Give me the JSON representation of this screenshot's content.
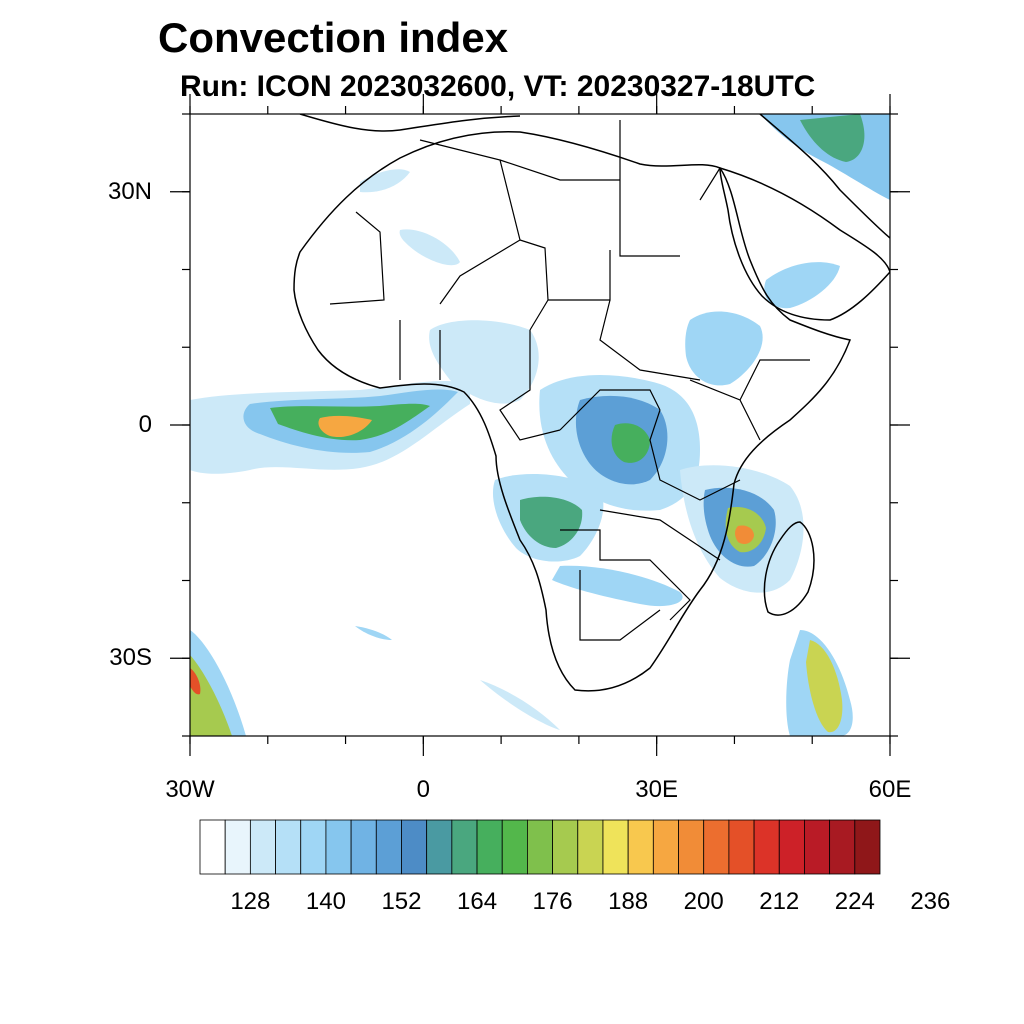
{
  "header": {
    "title": "Convection index",
    "subtitle": "Run: ICON 2023032600,  VT: 20230327-18UTC"
  },
  "axes": {
    "lon_range": [
      -30,
      60
    ],
    "lat_range": [
      -40,
      40
    ],
    "x_ticks": [
      {
        "lon": -30,
        "label": "30W"
      },
      {
        "lon": 0,
        "label": "0"
      },
      {
        "lon": 30,
        "label": "30E"
      },
      {
        "lon": 60,
        "label": "60E"
      }
    ],
    "y_ticks": [
      {
        "lat": 30,
        "label": "30N"
      },
      {
        "lat": 0,
        "label": "0"
      },
      {
        "lat": -30,
        "label": "30S"
      }
    ]
  },
  "colorbar": {
    "colors": [
      "#ffffff",
      "#e8f5fc",
      "#cce9f8",
      "#b5e0f7",
      "#9fd6f5",
      "#86c6ee",
      "#70b3e4",
      "#5c9fd6",
      "#4d8cc6",
      "#4a9aa2",
      "#4aa77f",
      "#46af5d",
      "#53b74b",
      "#7fc04c",
      "#a6ca4f",
      "#c9d452",
      "#efe35a",
      "#f8c84e",
      "#f6a741",
      "#f18c37",
      "#ec6e2f",
      "#e45028",
      "#dc3328",
      "#cd2128",
      "#b91b26",
      "#a81a22",
      "#8f1719"
    ],
    "labels": [
      "128",
      "140",
      "152",
      "164",
      "176",
      "188",
      "200",
      "212",
      "224",
      "236"
    ]
  },
  "map_data": {
    "type": "filled-contour-map",
    "projection": "cylindrical-equidistant",
    "coastlines": true,
    "country_borders": true,
    "regions": [
      {
        "name": "gulf-of-guinea-band",
        "lon": -18,
        "lat": 1,
        "level": 200
      },
      {
        "name": "central-africa",
        "lon": 24,
        "lat": 2,
        "level": 170
      },
      {
        "name": "mozambique-channel",
        "lon": 41,
        "lat": -14,
        "level": 205
      },
      {
        "name": "angola",
        "lon": 14,
        "lat": -12,
        "level": 165
      },
      {
        "name": "sw-atlantic",
        "lon": -29,
        "lat": -35,
        "level": 210
      },
      {
        "name": "sw-indian-ocean",
        "lon": 51,
        "lat": -34,
        "level": 190
      },
      {
        "name": "iran",
        "lon": 55,
        "lat": 36,
        "level": 165
      }
    ]
  }
}
